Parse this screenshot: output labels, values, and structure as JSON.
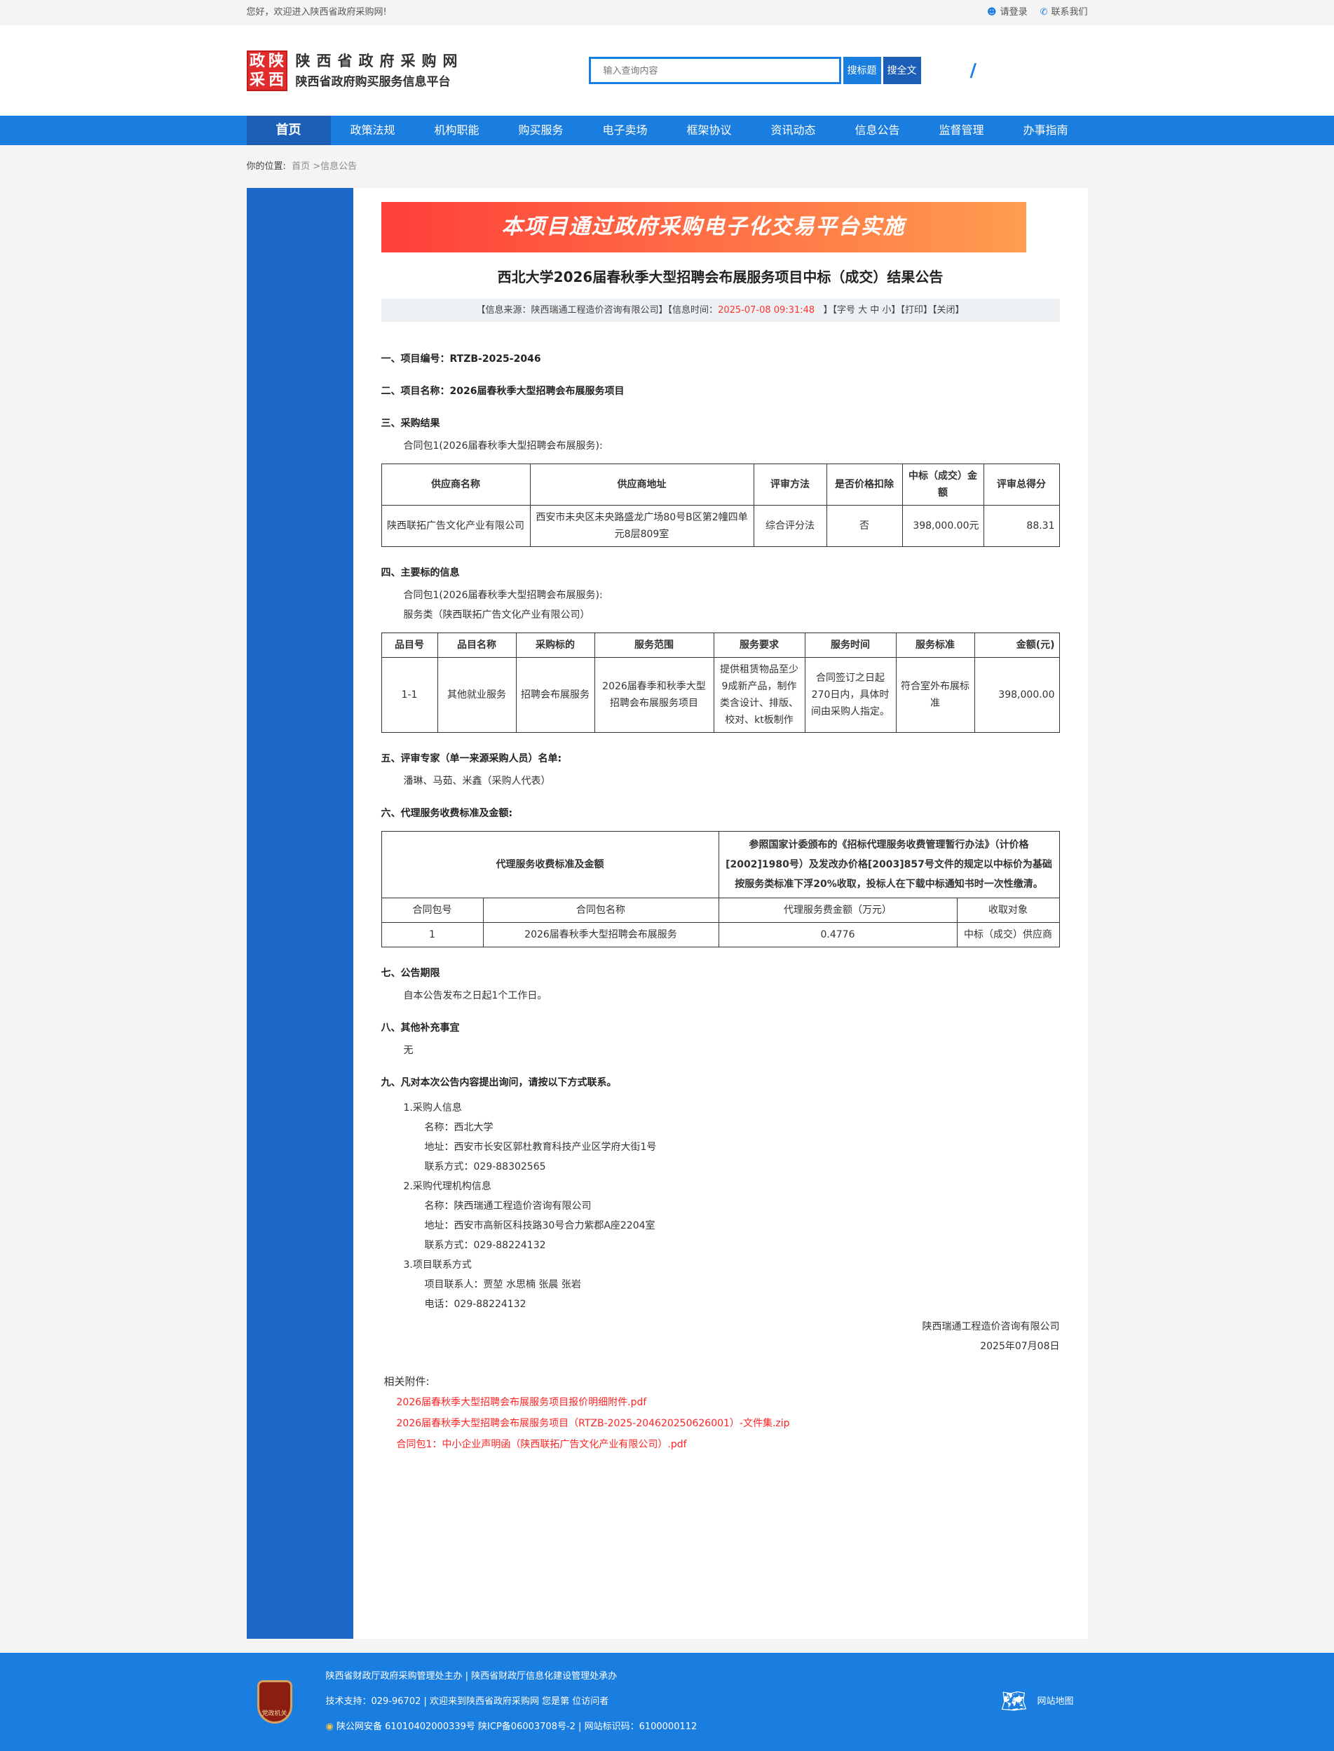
{
  "topbar": {
    "welcome": "您好，欢迎进入陕西省政府采购网!",
    "login": "请登录",
    "contact": "联系我们"
  },
  "header": {
    "seal": [
      "政",
      "陕",
      "采",
      "西"
    ],
    "title": "陕西省政府采购网",
    "subtitle": "陕西省政府购买服务信息平台",
    "search_placeholder": "输入查询内容",
    "search_title": "搜标题",
    "search_full": "搜全文"
  },
  "nav": [
    "首页",
    "政策法规",
    "机构职能",
    "购买服务",
    "电子卖场",
    "框架协议",
    "资讯动态",
    "信息公告",
    "监督管理",
    "办事指南"
  ],
  "breadcrumb": {
    "label": "你的位置:",
    "path": "首页 >信息公告"
  },
  "banner": "本项目通过政府采购电子化交易平台实施",
  "title": "西北大学2026届春秋季大型招聘会布展服务项目中标（成交）结果公告",
  "info": {
    "source": "【信息来源：陕西瑞通工程造价咨询有限公司】【信息时间：",
    "time": "2025-07-08 09:31:48",
    "rest": "】【字号 大 中 小】【打印】【关闭】"
  },
  "s1": "一、项目编号：RTZB-2025-2046",
  "s2": "二、项目名称：2026届春秋季大型招聘会布展服务项目",
  "s3": "三、采购结果",
  "pkg": "合同包1(2026届春秋季大型招聘会布展服务):",
  "t1": {
    "headers": [
      "供应商名称",
      "供应商地址",
      "评审方法",
      "是否价格扣除",
      "中标（成交）金额",
      "评审总得分"
    ],
    "row": [
      "陕西联拓广告文化产业有限公司",
      "西安市未央区未央路盛龙广场80号B区第2幢四单元8层809室",
      "综合评分法",
      "否",
      "398,000.00元",
      "88.31"
    ]
  },
  "s4": "四、主要标的信息",
  "s4_type": "服务类（陕西联拓广告文化产业有限公司）",
  "t2": {
    "headers": [
      "品目号",
      "品目名称",
      "采购标的",
      "服务范围",
      "服务要求",
      "服务时间",
      "服务标准",
      "金额(元)"
    ],
    "row": [
      "1-1",
      "其他就业服务",
      "招聘会布展服务",
      "2026届春季和秋季大型招聘会布展服务项目",
      "提供租赁物品至少9成新产品，制作类含设计、排版、校对、kt板制作",
      "合同签订之日起270日内，具体时间由采购人指定。",
      "符合室外布展标准",
      "398,000.00"
    ]
  },
  "s5": "五、评审专家（单一来源采购人员）名单:",
  "s5_body": "潘琳、马茹、米鑫（采购人代表）",
  "s6": "六、代理服务收费标准及金额:",
  "t3": {
    "label": "代理服务收费标准及金额",
    "desc": "参照国家计委颁布的《招标代理服务收费管理暂行办法》（计价格[2002]1980号）及发改办价格[2003]857号文件的规定以中标价为基础按服务类标准下浮20%收取，投标人在下载中标通知书时一次性缴清。",
    "headers": [
      "合同包号",
      "合同包名称",
      "代理服务费金额（万元）",
      "收取对象"
    ],
    "row": [
      "1",
      "2026届春秋季大型招聘会布展服务",
      "0.4776",
      "中标（成交）供应商"
    ]
  },
  "s7": "七、公告期限",
  "s7_body": "自本公告发布之日起1个工作日。",
  "s8": "八、其他补充事宜",
  "s8_body": "无",
  "s9": "九、凡对本次公告内容提出询问，请按以下方式联系。",
  "contacts": [
    {
      "head": "1.采购人信息",
      "lines": [
        "名称：西北大学",
        "地址：西安市长安区郭杜教育科技产业区学府大街1号",
        "联系方式：029-88302565"
      ]
    },
    {
      "head": "2.采购代理机构信息",
      "lines": [
        "名称：陕西瑞通工程造价咨询有限公司",
        "地址：西安市高新区科技路30号合力紫郡A座2204室",
        "联系方式：029-88224132"
      ]
    },
    {
      "head": "3.项目联系方式",
      "lines": [
        "项目联系人：贾堃 水思楠 张晨 张岩",
        "电话：029-88224132"
      ]
    }
  ],
  "sign": {
    "org": "陕西瑞通工程造价咨询有限公司",
    "date": "2025年07月08日"
  },
  "attachments": {
    "label": "相关附件:",
    "files": [
      "2026届春秋季大型招聘会布展服务项目报价明细附件.pdf",
      "2026届春秋季大型招聘会布展服务项目（RTZB-2025-204620250626001）-文件集.zip",
      "合同包1：中小企业声明函（陕西联拓广告文化产业有限公司）.pdf"
    ]
  },
  "footer": {
    "badge": "党政机关",
    "line1": "陕西省财政厅政府采购管理处主办 | 陕西省财政厅信息化建设管理处承办",
    "line2": "技术支持：029-96702 | 欢迎来到陕西省政府采购网 您是第 位访问者",
    "line3": "陕公网安备 61010402000339号   陕ICP备06003708号-2  |  网站标识码：6100000112",
    "sitemap": "网站地图"
  },
  "colors": {
    "primary": "#1a7de0",
    "nav_active": "#1d5fb7",
    "sidebar": "#1e67c9",
    "link": "#ff2222"
  }
}
